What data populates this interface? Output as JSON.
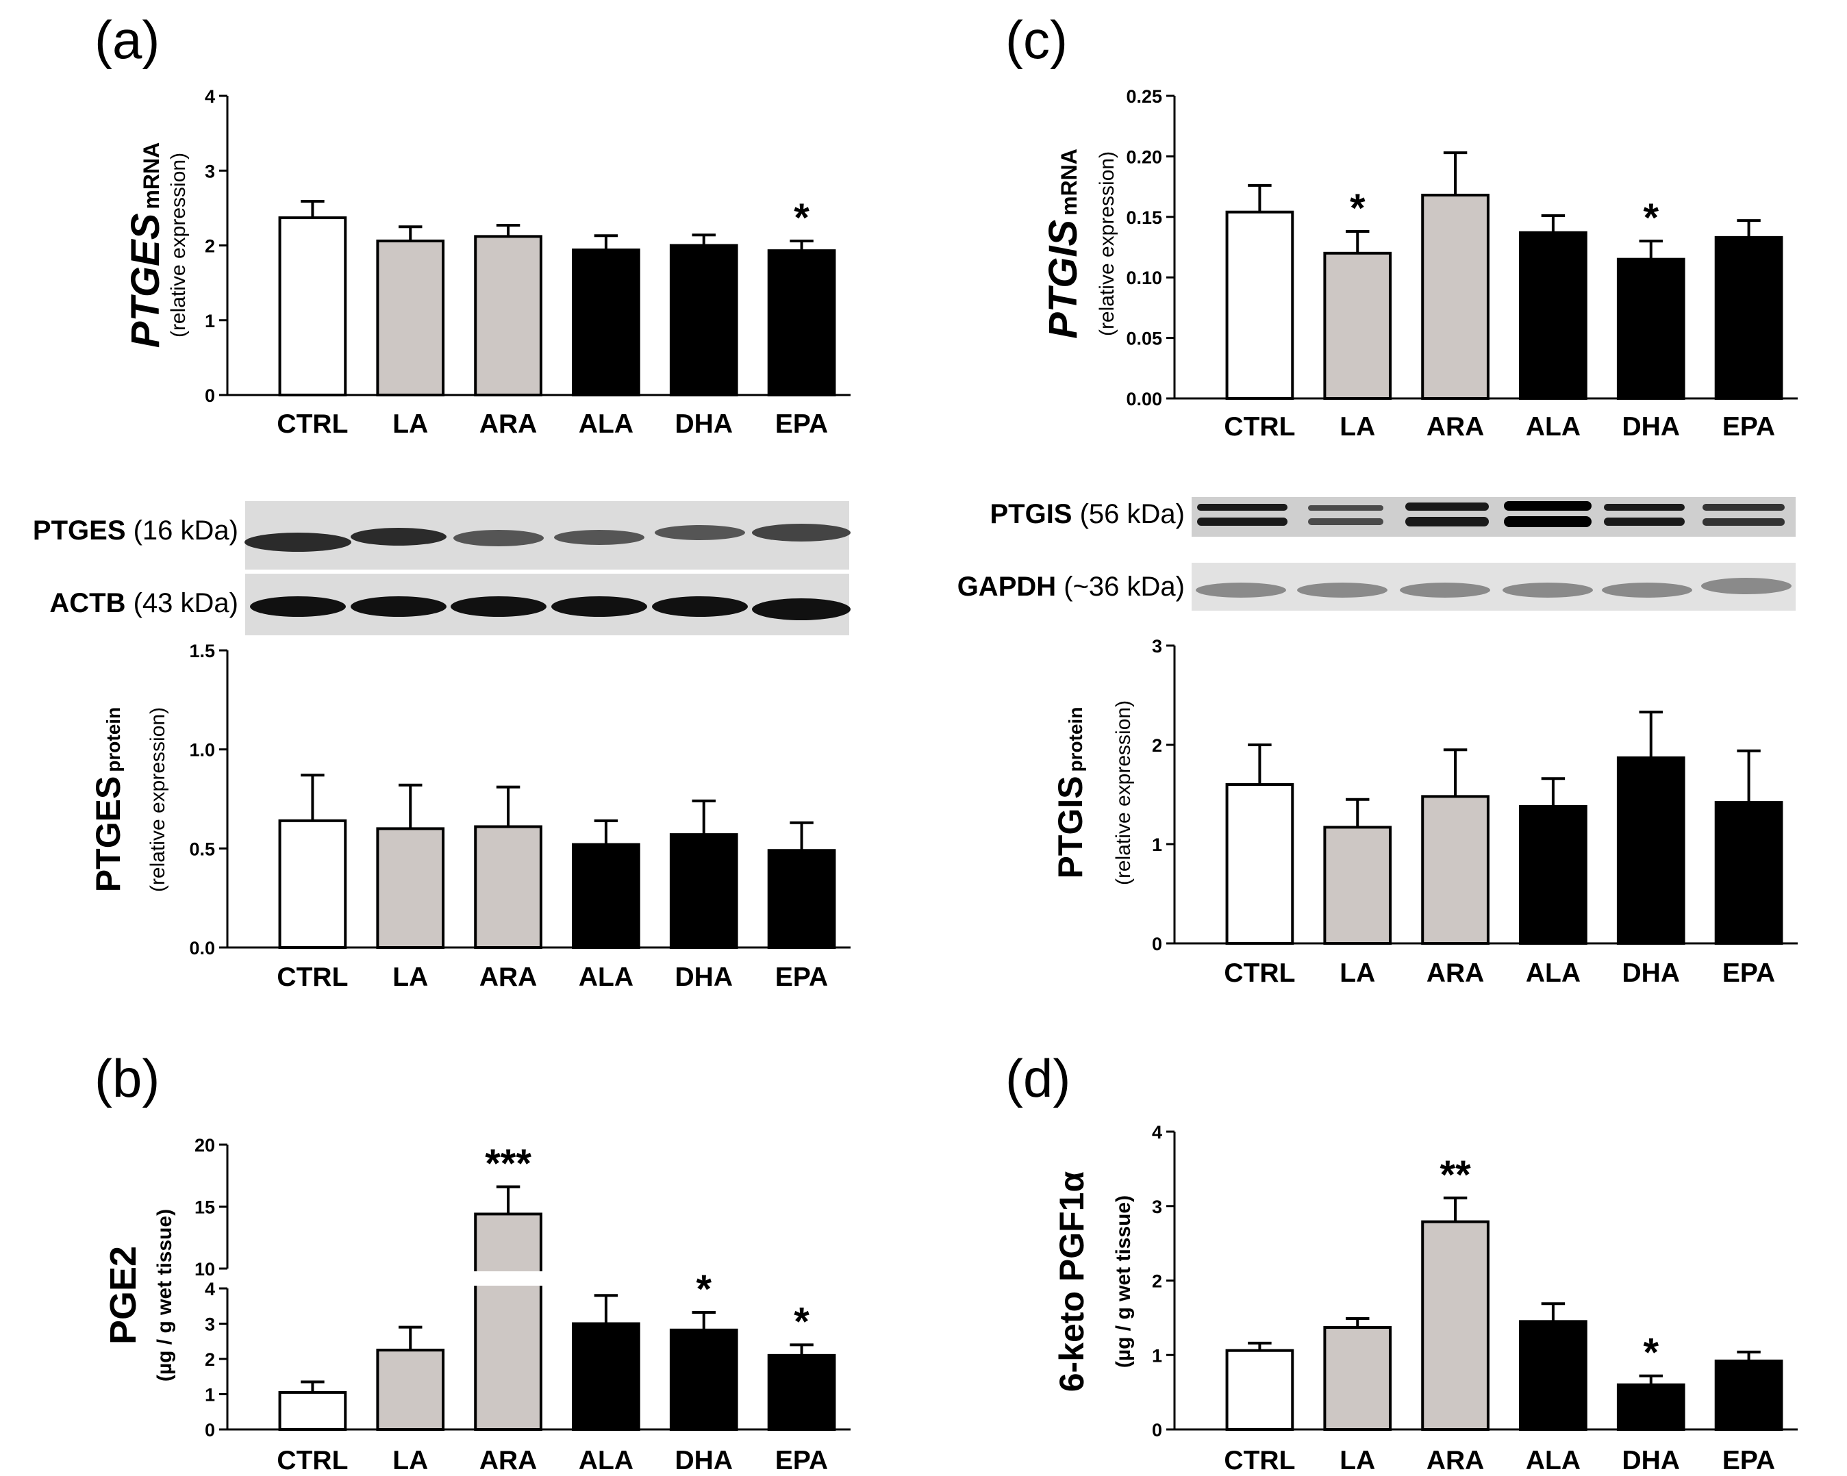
{
  "panels": {
    "a": "(a)",
    "b": "(b)",
    "c": "(c)",
    "d": "(d)"
  },
  "colors": {
    "CTRL": "#ffffff",
    "LA": "#cdc7c4",
    "ARA": "#cdc7c4",
    "ALA": "#000000",
    "DHA": "#000000",
    "EPA": "#000000"
  },
  "blots": {
    "a_top": {
      "name": "PTGES",
      "size": " (16 kDa)"
    },
    "a_bottom": {
      "name": "ACTB",
      "size": " (43 kDa)"
    },
    "c_top": {
      "name": "PTGIS",
      "size": " (56 kDa)"
    },
    "c_bottom": {
      "name": "GAPDH",
      "size": " (~36 kDa)"
    }
  },
  "chart_data": [
    {
      "id": "ptges_mrna",
      "panel": "a",
      "type": "bar",
      "categories": [
        "CTRL",
        "LA",
        "ARA",
        "ALA",
        "DHA",
        "EPA"
      ],
      "values": [
        2.37,
        2.06,
        2.12,
        1.94,
        2.0,
        1.93
      ],
      "errors": [
        0.22,
        0.19,
        0.15,
        0.19,
        0.14,
        0.13
      ],
      "significance": [
        "",
        "",
        "",
        "",
        "",
        "*"
      ],
      "ylabel_main": "PTGES",
      "ylabel_sub": "mRNA",
      "ylabel_second": "(relative expression)",
      "ylim": [
        0,
        4
      ],
      "yticks": [
        "0",
        "1",
        "2",
        "3",
        "4"
      ]
    },
    {
      "id": "ptges_protein",
      "panel": "a",
      "type": "bar",
      "categories": [
        "CTRL",
        "LA",
        "ARA",
        "ALA",
        "DHA",
        "EPA"
      ],
      "values": [
        0.64,
        0.6,
        0.61,
        0.52,
        0.57,
        0.49
      ],
      "errors": [
        0.23,
        0.22,
        0.2,
        0.12,
        0.17,
        0.14
      ],
      "significance": [
        "",
        "",
        "",
        "",
        "",
        ""
      ],
      "ylabel_main": "PTGES",
      "ylabel_sub": "protein",
      "ylabel_second": "(relative expression)",
      "ylim": [
        0,
        1.5
      ],
      "yticks": [
        "0.0",
        "0.5",
        "1.0",
        "1.5"
      ]
    },
    {
      "id": "pge2",
      "panel": "b",
      "type": "bar",
      "categories": [
        "CTRL",
        "LA",
        "ARA",
        "ALA",
        "DHA",
        "EPA"
      ],
      "values": [
        1.05,
        2.25,
        14.4,
        3.0,
        2.82,
        2.1
      ],
      "errors": [
        0.3,
        0.65,
        2.2,
        0.8,
        0.5,
        0.3
      ],
      "significance": [
        "",
        "",
        "***",
        "",
        "*",
        "*"
      ],
      "ylabel_main": "PGE2",
      "ylabel_second": "(µg / g wet tissue)",
      "axis_break": {
        "lower": [
          0,
          4
        ],
        "upper": [
          10,
          20
        ]
      },
      "yticks_lower": [
        "0",
        "1",
        "2",
        "3",
        "4"
      ],
      "yticks_upper": [
        "10",
        "15",
        "20"
      ]
    },
    {
      "id": "ptgis_mrna",
      "panel": "c",
      "type": "bar",
      "categories": [
        "CTRL",
        "LA",
        "ARA",
        "ALA",
        "DHA",
        "EPA"
      ],
      "values": [
        0.154,
        0.12,
        0.168,
        0.137,
        0.115,
        0.133
      ],
      "errors": [
        0.022,
        0.018,
        0.035,
        0.014,
        0.015,
        0.014
      ],
      "significance": [
        "",
        "*",
        "",
        "",
        "*",
        ""
      ],
      "ylabel_main": "PTGIS",
      "ylabel_sub": "mRNA",
      "ylabel_second": "(relative expression)",
      "ylim": [
        0,
        0.25
      ],
      "yticks": [
        "0.00",
        "0.05",
        "0.10",
        "0.15",
        "0.20",
        "0.25"
      ]
    },
    {
      "id": "ptgis_protein",
      "panel": "c",
      "type": "bar",
      "categories": [
        "CTRL",
        "LA",
        "ARA",
        "ALA",
        "DHA",
        "EPA"
      ],
      "values": [
        1.6,
        1.17,
        1.48,
        1.38,
        1.87,
        1.42
      ],
      "errors": [
        0.4,
        0.28,
        0.47,
        0.28,
        0.46,
        0.52
      ],
      "significance": [
        "",
        "",
        "",
        "",
        "",
        ""
      ],
      "ylabel_main": "PTGIS",
      "ylabel_sub": "protein",
      "ylabel_second": "(relative expression)",
      "ylim": [
        0,
        3
      ],
      "yticks": [
        "0",
        "1",
        "2",
        "3"
      ]
    },
    {
      "id": "keto_pgf1a",
      "panel": "d",
      "type": "bar",
      "categories": [
        "CTRL",
        "LA",
        "ARA",
        "ALA",
        "DHA",
        "EPA"
      ],
      "values": [
        1.06,
        1.37,
        2.79,
        1.45,
        0.6,
        0.92
      ],
      "errors": [
        0.1,
        0.12,
        0.32,
        0.24,
        0.12,
        0.12
      ],
      "significance": [
        "",
        "",
        "**",
        "",
        "*",
        ""
      ],
      "ylabel_main": "6-keto PGF1α",
      "ylabel_second": "(µg / g wet tissue)",
      "ylim": [
        0,
        4
      ],
      "yticks": [
        "0",
        "1",
        "2",
        "3",
        "4"
      ]
    }
  ]
}
